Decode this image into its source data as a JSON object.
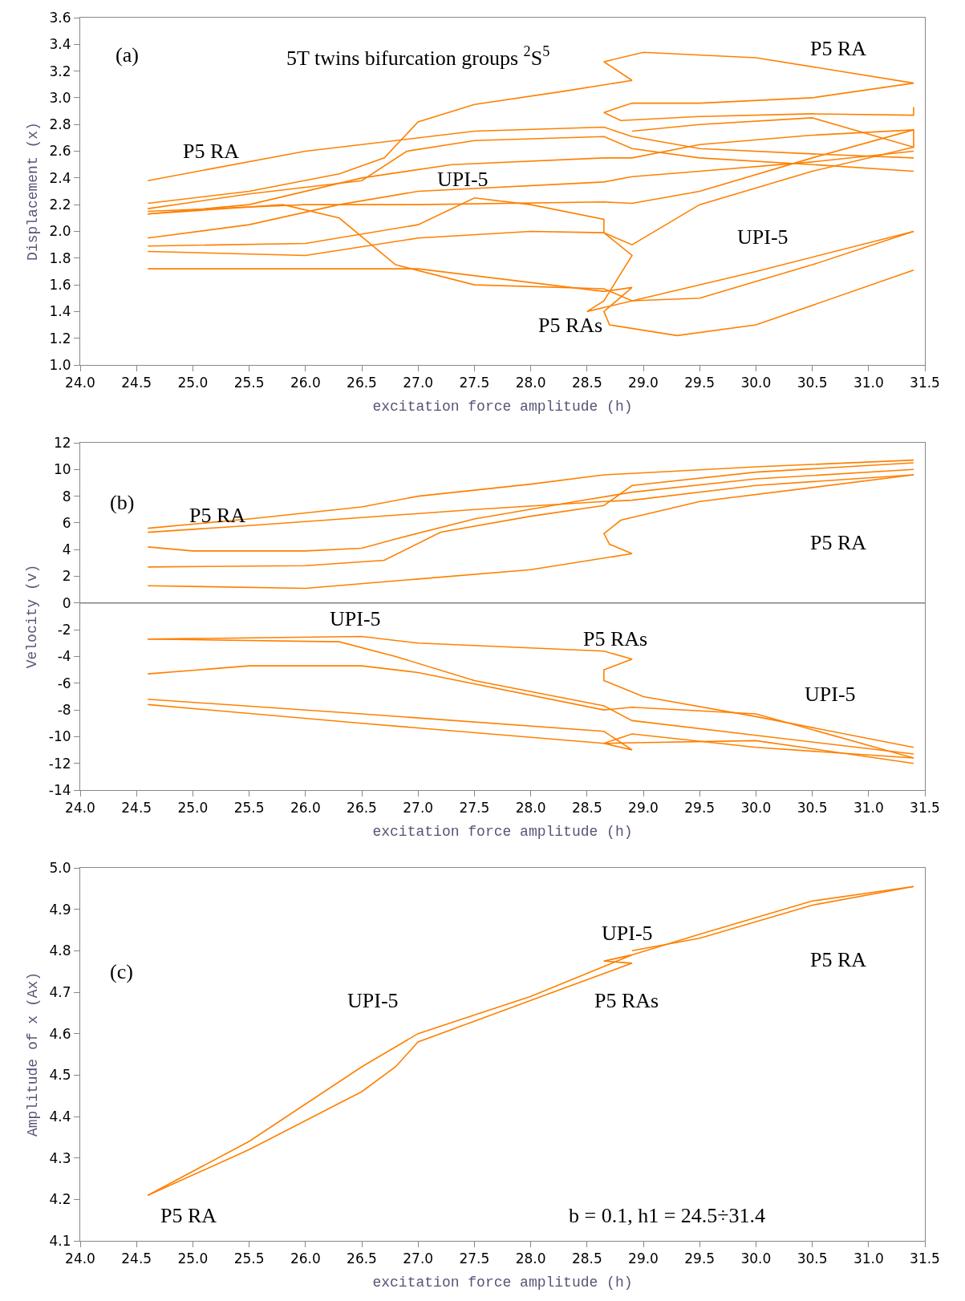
{
  "chart_data": [
    {
      "type": "line",
      "xlabel": "excitation force amplitude (h)",
      "ylabel": "Displacement (x)",
      "xlim": [
        24,
        31.5
      ],
      "ylim": [
        1,
        3.6
      ],
      "xticks": [
        {
          "value": 24,
          "label": "24.0"
        },
        24.5,
        {
          "value": 25,
          "label": "25.0"
        },
        25.5,
        {
          "value": 26,
          "label": "26.0"
        },
        26.5,
        {
          "value": 27,
          "label": "27.0"
        },
        27.5,
        {
          "value": 28,
          "label": "28.0"
        },
        28.5,
        {
          "value": 29,
          "label": "29.0"
        },
        29.5,
        {
          "value": 30,
          "label": "30.0"
        },
        30.5,
        {
          "value": 31,
          "label": "31.0"
        },
        31.5
      ],
      "yticks": [
        {
          "value": 1,
          "label": "1.0"
        },
        1.2,
        1.4,
        1.6,
        1.8,
        {
          "value": 2,
          "label": "2.0"
        },
        2.2,
        2.4,
        2.6,
        2.8,
        {
          "value": 3,
          "label": "3.0"
        },
        3.2,
        3.4,
        3.6
      ],
      "grid": false,
      "marker": "none",
      "line_style": "solid",
      "series": [
        {
          "color": "#ff8000",
          "x": [
            24.6,
            26,
            27.5,
            28.65,
            28.9,
            29.5,
            30.5,
            31.4
          ],
          "values": [
            2.38,
            2.6,
            2.75,
            2.78,
            2.71,
            2.62,
            2.58,
            2.55
          ]
        },
        {
          "color": "#ff8000",
          "x": [
            24.6,
            25.5,
            26.3,
            26.7,
            27.0,
            27.5,
            28.3,
            28.9,
            28.65,
            29.0,
            30.0,
            31.4
          ],
          "values": [
            2.21,
            2.3,
            2.43,
            2.55,
            2.82,
            2.95,
            3.05,
            3.13,
            3.27,
            3.34,
            3.3,
            3.11
          ]
        },
        {
          "color": "#ff8000",
          "x": [
            31.4,
            30.5,
            29.5,
            28.9,
            28.65,
            28.8,
            29.5,
            30.5,
            31.4,
            31.4
          ],
          "values": [
            3.11,
            3.0,
            2.96,
            2.96,
            2.89,
            2.83,
            2.86,
            2.88,
            2.87,
            2.93
          ]
        },
        {
          "color": "#ff8000",
          "x": [
            24.6,
            25.5,
            26.5,
            26.9,
            27.5,
            28.65,
            28.9,
            29.5,
            30.5,
            31.4
          ],
          "values": [
            2.17,
            2.28,
            2.38,
            2.6,
            2.68,
            2.71,
            2.62,
            2.55,
            2.5,
            2.45
          ]
        },
        {
          "color": "#ff8000",
          "x": [
            24.6,
            26,
            27,
            28.65,
            28.9,
            29.5,
            30.5,
            31.4
          ],
          "values": [
            2.15,
            2.2,
            2.2,
            2.22,
            2.21,
            2.3,
            2.55,
            2.76
          ]
        },
        {
          "color": "#ff8000",
          "x": [
            24.6,
            25.5,
            26.5,
            27.3,
            28.65,
            28.9,
            29.5,
            30.5,
            31.4,
            31.4,
            30.5,
            29.5,
            28.9
          ],
          "values": [
            2.13,
            2.2,
            2.4,
            2.5,
            2.55,
            2.55,
            2.65,
            2.72,
            2.76,
            2.63,
            2.85,
            2.8,
            2.75
          ]
        },
        {
          "color": "#ff8000",
          "x": [
            24.6,
            25.5,
            26.3,
            27,
            28.65,
            28.9,
            29.5,
            30.5,
            31.4
          ],
          "values": [
            1.95,
            2.05,
            2.2,
            2.3,
            2.37,
            2.41,
            2.45,
            2.52,
            2.6
          ]
        },
        {
          "color": "#ff8000",
          "x": [
            24.6,
            26,
            27,
            27.5,
            28,
            28.65,
            28.65,
            28.9,
            29.5,
            30.5,
            31.4
          ],
          "values": [
            1.89,
            1.91,
            2.05,
            2.25,
            2.2,
            2.09,
            1.99,
            1.9,
            2.2,
            2.45,
            2.63
          ]
        },
        {
          "color": "#ff8000",
          "x": [
            24.6,
            26,
            27,
            28,
            28.65,
            28.9,
            28.65,
            28.5,
            29.0,
            30,
            31.4
          ],
          "values": [
            1.85,
            1.82,
            1.95,
            2.0,
            1.99,
            1.82,
            1.48,
            1.4,
            1.5,
            1.7,
            2.0
          ]
        },
        {
          "color": "#ff8000",
          "x": [
            24.6,
            26,
            27,
            28.65,
            28.9,
            28.65,
            28.7,
            29.3,
            30,
            31.4
          ],
          "values": [
            1.72,
            1.72,
            1.72,
            1.55,
            1.58,
            1.4,
            1.3,
            1.22,
            1.3,
            1.71
          ]
        },
        {
          "color": "#ff8000",
          "x": [
            24.6,
            25.8,
            26.3,
            26.8,
            27.5,
            28.65,
            28.9,
            29.5,
            30.5,
            31.4
          ],
          "values": [
            2.13,
            2.2,
            2.1,
            1.75,
            1.6,
            1.57,
            1.48,
            1.5,
            1.75,
            2.0
          ]
        }
      ],
      "annotations": [
        "(a)",
        "5T twins bifurcation groups $^{2}$S$^{5}$",
        "P5 RA",
        "UPI-5",
        "P5 RA",
        "UPI-5",
        "P5 RAs"
      ]
    },
    {
      "type": "line",
      "xlabel": "excitation force amplitude (h)",
      "ylabel": "Velocity (v)",
      "xlim": [
        24,
        31.5
      ],
      "ylim": [
        -14,
        12
      ],
      "xticks": [
        {
          "value": 24,
          "label": "24.0"
        },
        24.5,
        {
          "value": 25,
          "label": "25.0"
        },
        25.5,
        {
          "value": 26,
          "label": "26.0"
        },
        26.5,
        {
          "value": 27,
          "label": "27.0"
        },
        27.5,
        {
          "value": 28,
          "label": "28.0"
        },
        28.5,
        {
          "value": 29,
          "label": "29.0"
        },
        29.5,
        {
          "value": 30,
          "label": "30.0"
        },
        30.5,
        {
          "value": 31,
          "label": "31.0"
        },
        31.5
      ],
      "yticks": [
        -14,
        -12,
        -10,
        -8,
        -6,
        -4,
        -2,
        0,
        2,
        4,
        6,
        8,
        10,
        12
      ],
      "grid": false,
      "marker": "none",
      "line_style": "solid",
      "ref_lines": [
        {
          "axis": "y",
          "value": 0,
          "color": "#808080"
        }
      ],
      "series": [
        {
          "color": "#ff8000",
          "x": [
            24.6,
            25.5,
            26.5,
            27.0,
            28.0,
            28.65,
            28.9,
            30,
            31.4
          ],
          "values": [
            5.6,
            6.3,
            7.2,
            8.0,
            8.9,
            9.6,
            9.7,
            10.2,
            10.7
          ]
        },
        {
          "color": "#ff8000",
          "x": [
            24.6,
            25.5,
            26.5,
            27.5,
            28.65,
            28.9,
            30,
            31.4
          ],
          "values": [
            5.3,
            5.8,
            6.4,
            7.0,
            7.6,
            7.7,
            8.8,
            9.6
          ]
        },
        {
          "color": "#ff8000",
          "x": [
            24.6,
            25,
            26,
            26.5,
            26.8,
            27.5,
            28.4,
            28.9,
            30,
            31.4
          ],
          "values": [
            4.2,
            3.9,
            3.9,
            4.1,
            4.8,
            6.3,
            7.6,
            8.3,
            9.3,
            10.0
          ]
        },
        {
          "color": "#ff8000",
          "x": [
            24.6,
            26,
            26.7,
            27.2,
            28,
            28.65,
            28.9,
            30,
            31.4
          ],
          "values": [
            2.7,
            2.8,
            3.2,
            5.3,
            6.5,
            7.3,
            8.8,
            9.8,
            10.5
          ]
        },
        {
          "color": "#ff8000",
          "x": [
            24.6,
            26,
            27,
            28,
            28.9,
            28.7,
            28.65,
            28.8,
            29.5,
            31.4
          ],
          "values": [
            1.3,
            1.1,
            1.8,
            2.5,
            3.7,
            4.4,
            5.2,
            6.2,
            7.6,
            9.6
          ]
        },
        {
          "color": "#ff8000",
          "x": [
            24.6,
            26.5,
            27,
            28.65,
            28.9,
            28.65,
            28.65,
            29.0,
            30,
            31.4
          ],
          "values": [
            -2.7,
            -2.5,
            -3.0,
            -3.6,
            -4.2,
            -5.0,
            -5.8,
            -7.0,
            -8.5,
            -10.8
          ]
        },
        {
          "color": "#ff8000",
          "x": [
            24.6,
            26.3,
            26.8,
            27.5,
            28.65,
            28.9,
            30,
            31.4
          ],
          "values": [
            -2.7,
            -2.9,
            -4.0,
            -5.8,
            -7.7,
            -8.8,
            -9.9,
            -11.3
          ]
        },
        {
          "color": "#ff8000",
          "x": [
            24.6,
            25.5,
            26.5,
            27,
            28.65,
            28.9,
            30,
            31.4
          ],
          "values": [
            -5.3,
            -4.7,
            -4.7,
            -5.2,
            -8.0,
            -7.8,
            -8.3,
            -11.6
          ]
        },
        {
          "color": "#ff8000",
          "x": [
            24.6,
            26.5,
            28.65,
            28.9,
            28.65,
            30,
            31.4
          ],
          "values": [
            -7.2,
            -8.3,
            -9.6,
            -11.0,
            -10.5,
            -10.3,
            -12.0
          ]
        },
        {
          "color": "#ff8000",
          "x": [
            24.6,
            26.5,
            28.65,
            28.9,
            30,
            31.4
          ],
          "values": [
            -7.6,
            -9.0,
            -10.5,
            -9.8,
            -10.8,
            -11.6
          ]
        }
      ],
      "annotations": [
        "(b)",
        "P5 RA",
        "P5 RA",
        "UPI-5",
        "P5 RAs",
        "UPI-5"
      ]
    },
    {
      "type": "line",
      "xlabel": "excitation force amplitude (h)",
      "ylabel": "Amplitude of x (Ax)",
      "xlim": [
        24,
        31.5
      ],
      "ylim": [
        4.1,
        5.0
      ],
      "xticks": [
        {
          "value": 24,
          "label": "24.0"
        },
        24.5,
        {
          "value": 25,
          "label": "25.0"
        },
        25.5,
        {
          "value": 26,
          "label": "26.0"
        },
        26.5,
        {
          "value": 27,
          "label": "27.0"
        },
        27.5,
        {
          "value": 28,
          "label": "28.0"
        },
        28.5,
        {
          "value": 29,
          "label": "29.0"
        },
        29.5,
        {
          "value": 30,
          "label": "30.0"
        },
        30.5,
        {
          "value": 31,
          "label": "31.0"
        },
        31.5
      ],
      "yticks": [
        4.1,
        4.2,
        4.3,
        4.4,
        4.5,
        4.6,
        4.7,
        4.8,
        4.9,
        {
          "value": 5,
          "label": "5.0"
        }
      ],
      "grid": false,
      "marker": "none",
      "line_style": "solid",
      "series": [
        {
          "color": "#ff8000",
          "x": [
            24.6,
            25.5,
            26.5,
            27.0,
            28.0,
            28.9,
            28.65
          ],
          "values": [
            4.21,
            4.34,
            4.52,
            4.6,
            4.69,
            4.79,
            4.775
          ]
        },
        {
          "color": "#ff8000",
          "x": [
            24.6,
            25.5,
            26.5,
            26.8,
            27.0,
            28.0,
            28.9,
            28.65
          ],
          "values": [
            4.21,
            4.32,
            4.46,
            4.52,
            4.58,
            4.68,
            4.77,
            4.775
          ]
        },
        {
          "color": "#ff8000",
          "x": [
            28.65,
            28.9,
            29.5,
            30.5,
            31.4
          ],
          "values": [
            4.775,
            4.79,
            4.84,
            4.92,
            4.955
          ]
        },
        {
          "color": "#ff8000",
          "x": [
            28.9,
            29.5,
            30.5,
            31.4
          ],
          "values": [
            4.8,
            4.83,
            4.91,
            4.955
          ]
        }
      ],
      "annotations": [
        "(c)",
        "UPI-5",
        "P5 RA",
        "UPI-5",
        "P5 RAs",
        "P5 RA",
        "b = 0.1, h1 = 24.5÷31.4"
      ]
    }
  ]
}
